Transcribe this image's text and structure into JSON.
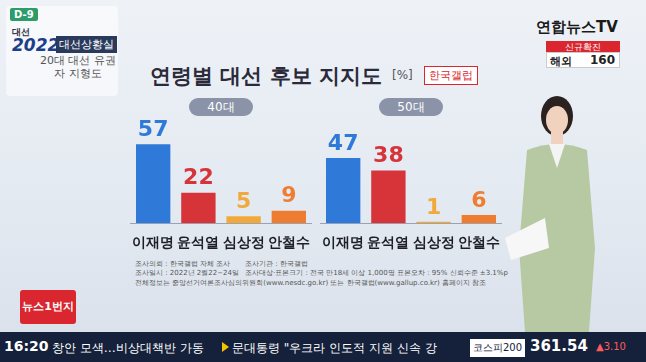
{
  "header": {
    "dday": "D-9",
    "logo_top": "대선",
    "logo_year": "2022",
    "program": "대선상황실",
    "segment": "20대 대선 유권자 지형도"
  },
  "channel": {
    "name": "연합뉴스TV",
    "covid_label": "신규확진",
    "covid_region": "해외",
    "covid_count": 160
  },
  "title": "연령별 대선 후보 지지도",
  "unit": "[%]",
  "source": "한국갤럽",
  "chart_data": [
    {
      "type": "bar",
      "title": "40대",
      "categories": [
        "이재명",
        "윤석열",
        "심상정",
        "안철수"
      ],
      "values": [
        57,
        22,
        5,
        9
      ],
      "colors": [
        "#2f7ad8",
        "#d7343a",
        "#f2a93b",
        "#ef7d31"
      ],
      "ylim": [
        0,
        60
      ],
      "data_labels": true,
      "tick_labels": "x",
      "grid": false
    },
    {
      "type": "bar",
      "title": "50대",
      "categories": [
        "이재명",
        "윤석열",
        "심상정",
        "안철수"
      ],
      "values": [
        47,
        38,
        1,
        6
      ],
      "colors": [
        "#2f7ad8",
        "#d7343a",
        "#f2a93b",
        "#ef7d31"
      ],
      "ylim": [
        0,
        60
      ],
      "data_labels": true,
      "tick_labels": "x",
      "grid": false
    }
  ],
  "footnotes": [
    "조사의뢰 : 한국갤럽 자체 조사",
    "조사일시 : 2022년 2월22~24일",
    "조사기관 : 한국갤럽",
    "조사대상·표본크기 : 전국 만18세 이상 1,000명",
    "표본오차 : 95% 신뢰수준 ±3.1%p",
    "전체정보는 중앙선거여론조사심의위원회(www.nesdc.go.kr) 또는 한국갤럽(www.gallup.co.kr) 홈페이지 참조"
  ],
  "corner_logo": "뉴스1번지",
  "ticker": {
    "time": "16:20",
    "headlines": [
      "창안 모색…비상대책반 가동",
      "문대통령 \"우크라 인도적 지원 신속 강"
    ],
    "index_name": "코스피200",
    "index_value": 361.54,
    "index_change_label": "▲3.10"
  }
}
